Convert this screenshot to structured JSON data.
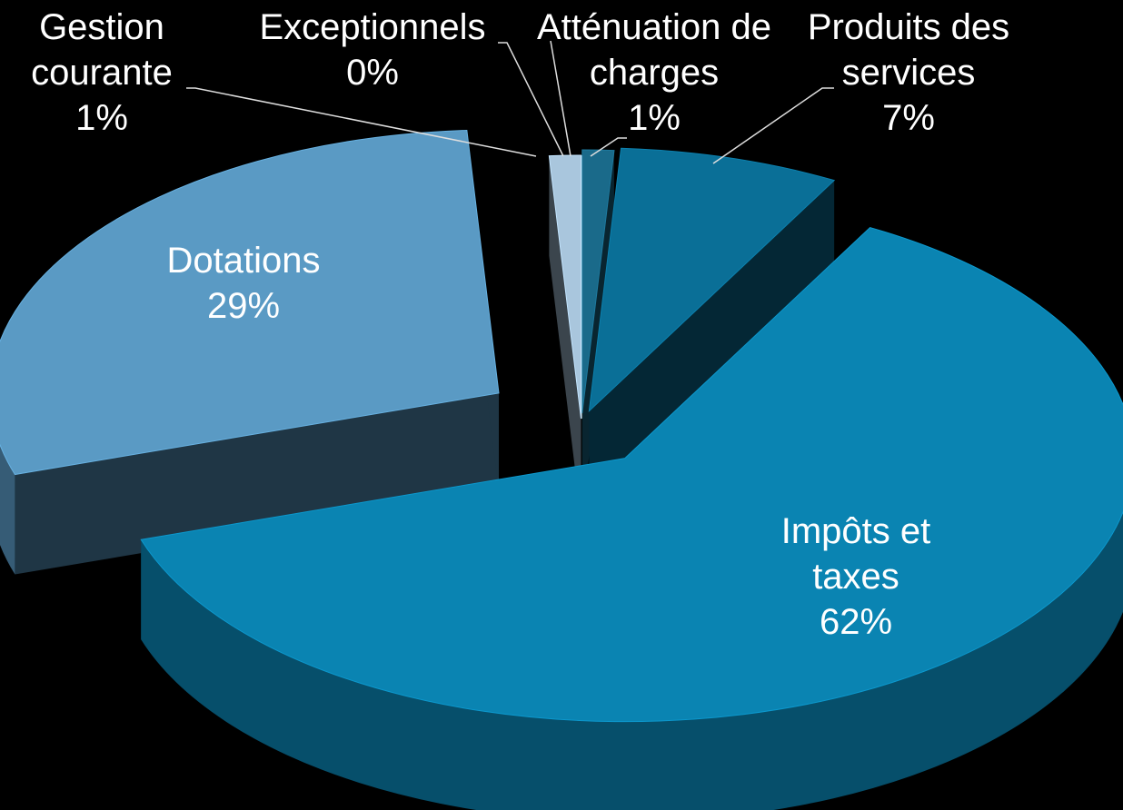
{
  "chart_data": {
    "type": "pie",
    "categories": [
      "Atténuation de charges",
      "Produits des services",
      "Impôts et taxes",
      "Dotations",
      "Gestion courante",
      "Exceptionnels"
    ],
    "values": [
      1,
      7,
      62,
      29,
      1,
      0
    ],
    "value_labels": [
      "1%",
      "7%",
      "62%",
      "29%",
      "1%",
      "0%"
    ],
    "colors": [
      "#1a6a8a",
      "#0a6f97",
      "#0a84b2",
      "#5a9ac4",
      "#a9c6dd",
      "#d3dfe9"
    ]
  }
}
